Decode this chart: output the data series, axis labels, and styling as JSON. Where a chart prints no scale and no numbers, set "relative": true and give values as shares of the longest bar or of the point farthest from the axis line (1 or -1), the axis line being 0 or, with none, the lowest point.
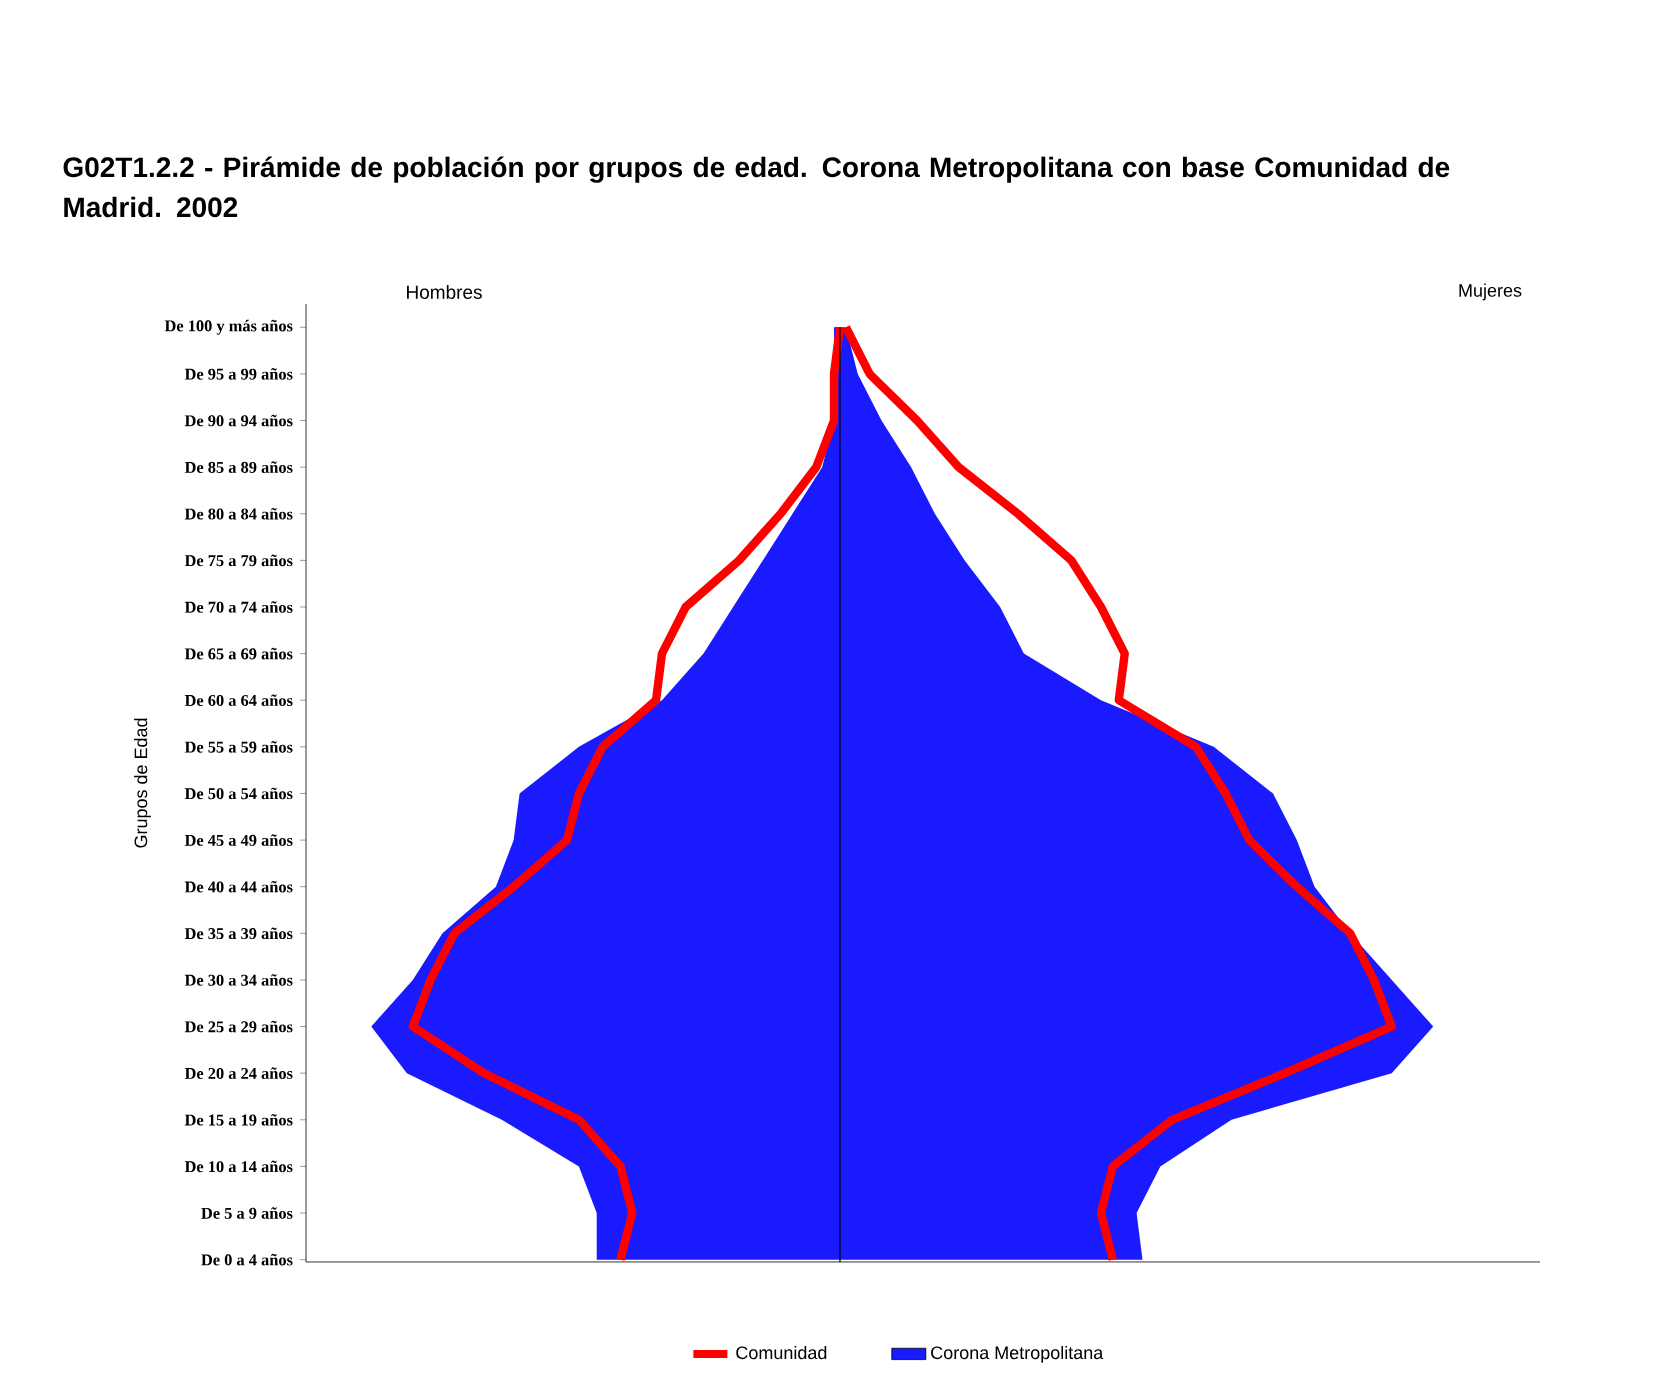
{
  "chart_data": {
    "type": "area",
    "orientation": "horizontal",
    "relative": true,
    "title": "G02T1.2.2 - Pirámide de población por grupos de edad. Corona Metropolitana con base Comunidad de Madrid. 2002",
    "ylabel": "Grupos de Edad",
    "annotations": [
      "Hombres",
      "Mujeres"
    ],
    "categories": [
      "De 100 y más años",
      "De 95 a 99 años",
      "De 90 a 94 años",
      "De 85 a 89 años",
      "De 80 a 84 años",
      "De 75 a 79 años",
      "De 70 a 74 años",
      "De 65 a 69 años",
      "De 60 a 64 años",
      "De 55 a 59 años",
      "De 50 a 54 años",
      "De 45 a 49 años",
      "De 40 a 44 años",
      "De 35 a 39 años",
      "De 30 a 34 años",
      "De 25 a 29 años",
      "De 20 a 24 años",
      "De 15 a 19 años",
      "De 10 a 14 años",
      "De 5 a 9 años",
      "De 0 a 4 años"
    ],
    "legend": "bottom",
    "series": [
      {
        "name": "Comunidad",
        "type": "line",
        "color": "#ff0000",
        "values": [
          0,
          -0.01,
          -0.01,
          -0.04,
          -0.1,
          -0.17,
          -0.26,
          -0.3,
          -0.31,
          -0.4,
          -0.44,
          -0.46,
          -0.55,
          -0.65,
          -0.69,
          -0.72,
          -0.6,
          -0.44,
          -0.37,
          -0.35,
          -0.37
        ]
      },
      {
        "type": "line",
        "color": "#ff0000",
        "values": [
          0.01,
          0.05,
          0.13,
          0.2,
          0.3,
          0.39,
          0.44,
          0.48,
          0.47,
          0.6,
          0.65,
          0.69,
          0.77,
          0.86,
          0.9,
          0.93,
          0.75,
          0.56,
          0.46,
          0.44,
          0.46
        ]
      },
      {
        "name": "Corona Metropolitana",
        "color": "#1a1aff",
        "values": [
          -0.01,
          -0.01,
          -0.01,
          -0.03,
          -0.08,
          -0.13,
          -0.18,
          -0.23,
          -0.3,
          -0.44,
          -0.54,
          -0.55,
          -0.58,
          -0.67,
          -0.72,
          -0.79,
          -0.73,
          -0.57,
          -0.44,
          -0.41,
          -0.41
        ]
      },
      {
        "color": "#1a1aff",
        "values": [
          0.01,
          0.03,
          0.07,
          0.12,
          0.16,
          0.21,
          0.27,
          0.31,
          0.44,
          0.63,
          0.73,
          0.77,
          0.8,
          0.86,
          0.93,
          1.0,
          0.93,
          0.66,
          0.54,
          0.5,
          0.51
        ]
      }
    ]
  }
}
